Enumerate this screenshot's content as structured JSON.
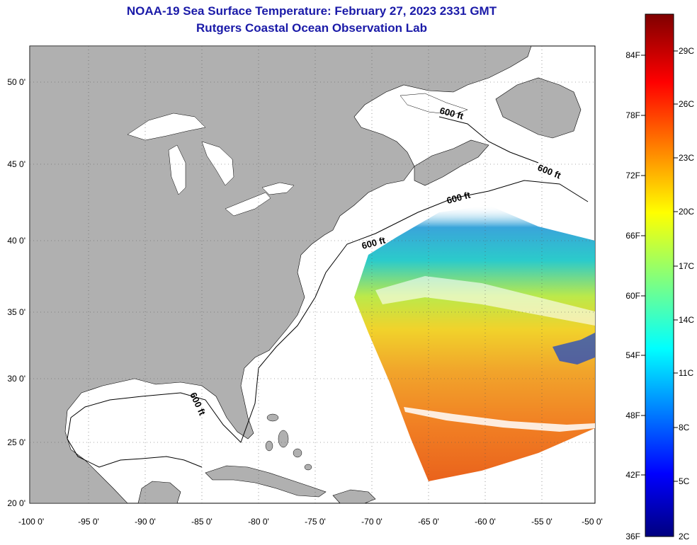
{
  "header": {
    "title": "NOAA-19 Sea Surface Temperature:  February 27, 2023 2331 GMT",
    "subtitle": "Rutgers Coastal Ocean Observation Lab"
  },
  "map": {
    "lon_labels": [
      "-100 0'",
      "-95 0'",
      "-90 0'",
      "-85 0'",
      "-80 0'",
      "-75 0'",
      "-70 0'",
      "-65 0'",
      "-60 0'",
      "-55 0'",
      "-50 0'"
    ],
    "lat_labels": [
      "50 0'",
      "45 0'",
      "40 0'",
      "35 0'",
      "30 0'",
      "25 0'",
      "20 0'"
    ],
    "isobath_label": "600 ft",
    "land_color": "#b0b0b0",
    "ocean_color": "#ffffff"
  },
  "colorbar": {
    "fahrenheit": [
      "84F",
      "78F",
      "72F",
      "66F",
      "60F",
      "54F",
      "48F",
      "42F",
      "36F"
    ],
    "celsius": [
      "29C",
      "26C",
      "23C",
      "20C",
      "17C",
      "14C",
      "11C",
      "8C",
      "5C",
      "2C"
    ]
  }
}
